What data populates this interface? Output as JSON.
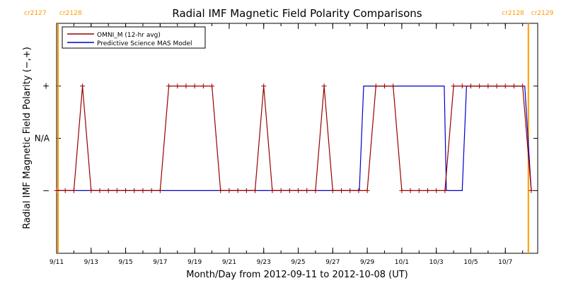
{
  "chart_data": {
    "type": "line",
    "title": "Radial IMF Magnetic Field Polarity Comparisons",
    "xlabel": "Month/Day from 2012-09-11 to 2012-10-08 (UT)",
    "ylabel": "Radial IMF Magnetic Field Polarity (−,+)",
    "x_range": [
      "2012-09-11T00:00",
      "2012-10-08T21:00"
    ],
    "y_range": [
      -2.2,
      2.2
    ],
    "x_ticks": [
      {
        "date": "2012-09-11",
        "label": "9/11"
      },
      {
        "date": "2012-09-13",
        "label": "9/13"
      },
      {
        "date": "2012-09-15",
        "label": "9/15"
      },
      {
        "date": "2012-09-17",
        "label": "9/17"
      },
      {
        "date": "2012-09-19",
        "label": "9/19"
      },
      {
        "date": "2012-09-21",
        "label": "9/21"
      },
      {
        "date": "2012-09-23",
        "label": "9/23"
      },
      {
        "date": "2012-09-25",
        "label": "9/25"
      },
      {
        "date": "2012-09-27",
        "label": "9/27"
      },
      {
        "date": "2012-09-29",
        "label": "9/29"
      },
      {
        "date": "2012-10-01",
        "label": "10/1"
      },
      {
        "date": "2012-10-03",
        "label": "10/3"
      },
      {
        "date": "2012-10-05",
        "label": "10/5"
      },
      {
        "date": "2012-10-07",
        "label": "10/7"
      }
    ],
    "y_ticks": [
      {
        "value": 1,
        "label": "+"
      },
      {
        "value": 0,
        "label": "N/A"
      },
      {
        "value": -1,
        "label": "−"
      }
    ],
    "rotations": [
      {
        "date": "2012-09-11T02:00",
        "left_label": "cr2127",
        "right_label": "cr2128",
        "side": "left"
      },
      {
        "date": "2012-10-08T08:00",
        "left_label": "cr2128",
        "right_label": "cr2129",
        "side": "right"
      }
    ],
    "legend": {
      "position": "top-left",
      "entries": [
        "OMNI_M (12-hr avg)",
        "Predictive Science MAS Model"
      ]
    },
    "colors": {
      "omni": "#990000",
      "model": "#0000cc",
      "rotation_marker": "#ff9900",
      "axis": "#000000"
    },
    "series": [
      {
        "name": "OMNI_M (12-hr avg)",
        "markers": true,
        "points": [
          [
            "2012-09-11T00:00",
            -1
          ],
          [
            "2012-09-11T12:00",
            -1
          ],
          [
            "2012-09-12T00:00",
            -1
          ],
          [
            "2012-09-12T12:00",
            1
          ],
          [
            "2012-09-13T00:00",
            -1
          ],
          [
            "2012-09-13T12:00",
            -1
          ],
          [
            "2012-09-14T00:00",
            -1
          ],
          [
            "2012-09-14T12:00",
            -1
          ],
          [
            "2012-09-15T00:00",
            -1
          ],
          [
            "2012-09-15T12:00",
            -1
          ],
          [
            "2012-09-16T00:00",
            -1
          ],
          [
            "2012-09-16T12:00",
            -1
          ],
          [
            "2012-09-17T00:00",
            -1
          ],
          [
            "2012-09-17T12:00",
            1
          ],
          [
            "2012-09-18T00:00",
            1
          ],
          [
            "2012-09-18T12:00",
            1
          ],
          [
            "2012-09-19T00:00",
            1
          ],
          [
            "2012-09-19T12:00",
            1
          ],
          [
            "2012-09-20T00:00",
            1
          ],
          [
            "2012-09-20T12:00",
            -1
          ],
          [
            "2012-09-21T00:00",
            -1
          ],
          [
            "2012-09-21T12:00",
            -1
          ],
          [
            "2012-09-22T00:00",
            -1
          ],
          [
            "2012-09-22T12:00",
            -1
          ],
          [
            "2012-09-23T00:00",
            1
          ],
          [
            "2012-09-23T12:00",
            -1
          ],
          [
            "2012-09-24T00:00",
            -1
          ],
          [
            "2012-09-24T12:00",
            -1
          ],
          [
            "2012-09-25T00:00",
            -1
          ],
          [
            "2012-09-25T12:00",
            -1
          ],
          [
            "2012-09-26T00:00",
            -1
          ],
          [
            "2012-09-26T12:00",
            1
          ],
          [
            "2012-09-27T00:00",
            -1
          ],
          [
            "2012-09-27T12:00",
            -1
          ],
          [
            "2012-09-28T00:00",
            -1
          ],
          [
            "2012-09-28T12:00",
            -1
          ],
          [
            "2012-09-29T00:00",
            -1
          ],
          [
            "2012-09-29T12:00",
            1
          ],
          [
            "2012-09-30T00:00",
            1
          ],
          [
            "2012-09-30T12:00",
            1
          ],
          [
            "2012-10-01T00:00",
            -1
          ],
          [
            "2012-10-01T12:00",
            -1
          ],
          [
            "2012-10-02T00:00",
            -1
          ],
          [
            "2012-10-02T12:00",
            -1
          ],
          [
            "2012-10-03T00:00",
            -1
          ],
          [
            "2012-10-03T12:00",
            -1
          ],
          [
            "2012-10-04T00:00",
            1
          ],
          [
            "2012-10-04T12:00",
            1
          ],
          [
            "2012-10-05T00:00",
            1
          ],
          [
            "2012-10-05T12:00",
            1
          ],
          [
            "2012-10-06T00:00",
            1
          ],
          [
            "2012-10-06T12:00",
            1
          ],
          [
            "2012-10-07T00:00",
            1
          ],
          [
            "2012-10-07T12:00",
            1
          ],
          [
            "2012-10-08T00:00",
            1
          ],
          [
            "2012-10-08T12:00",
            -1
          ]
        ]
      },
      {
        "name": "Predictive Science MAS Model",
        "markers": false,
        "points": [
          [
            "2012-09-11T00:00",
            -1
          ],
          [
            "2012-09-28T13:00",
            -1
          ],
          [
            "2012-09-28T19:00",
            1
          ],
          [
            "2012-10-03T11:00",
            1
          ],
          [
            "2012-10-03T14:00",
            -1
          ],
          [
            "2012-10-04T12:00",
            -1
          ],
          [
            "2012-10-04T18:00",
            1
          ],
          [
            "2012-10-08T03:00",
            1
          ],
          [
            "2012-10-08T12:00",
            -1
          ]
        ]
      }
    ]
  }
}
